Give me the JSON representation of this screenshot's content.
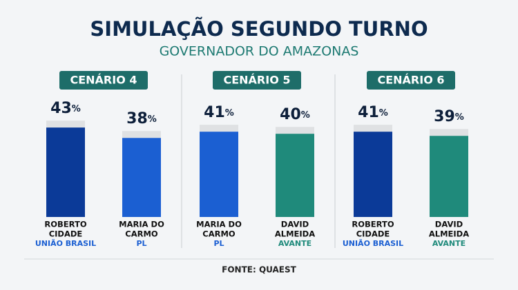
{
  "title": "SIMULAÇÃO SEGUNDO TURNO",
  "subtitle": "GOVERNADOR DO AMAZONAS",
  "source": "FONTE: QUAEST",
  "chart_data": [
    {
      "type": "bar",
      "title": "CENÁRIO 4",
      "categories": [
        [
          "ROBERTO",
          "CIDADE"
        ],
        [
          "MARIA DO",
          "CARMO"
        ]
      ],
      "parties": [
        "UNIÃO BRASIL",
        "PL"
      ],
      "values": [
        43,
        38
      ],
      "value_labels": [
        "43%",
        "38%"
      ],
      "colors": [
        "#0b3a98",
        "#1b5fd2"
      ],
      "party_colors": [
        "#1b5fd2",
        "#1b5fd2"
      ]
    },
    {
      "type": "bar",
      "title": "CENÁRIO 5",
      "categories": [
        [
          "MARIA DO",
          "CARMO"
        ],
        [
          "DAVID",
          "ALMEIDA"
        ]
      ],
      "parties": [
        "PL",
        "AVANTE"
      ],
      "values": [
        41,
        40
      ],
      "value_labels": [
        "41%",
        "40%"
      ],
      "colors": [
        "#1b5fd2",
        "#1f8a7b"
      ],
      "party_colors": [
        "#1b5fd2",
        "#1f8a7b"
      ]
    },
    {
      "type": "bar",
      "title": "CENÁRIO 6",
      "categories": [
        [
          "ROBERTO",
          "CIDADE"
        ],
        [
          "DAVID",
          "ALMEIDA"
        ]
      ],
      "parties": [
        "UNIÃO BRASIL",
        "AVANTE"
      ],
      "values": [
        41,
        39
      ],
      "value_labels": [
        "41%",
        "39%"
      ],
      "colors": [
        "#0b3a98",
        "#1f8a7b"
      ],
      "party_colors": [
        "#1b5fd2",
        "#1f8a7b"
      ]
    }
  ]
}
